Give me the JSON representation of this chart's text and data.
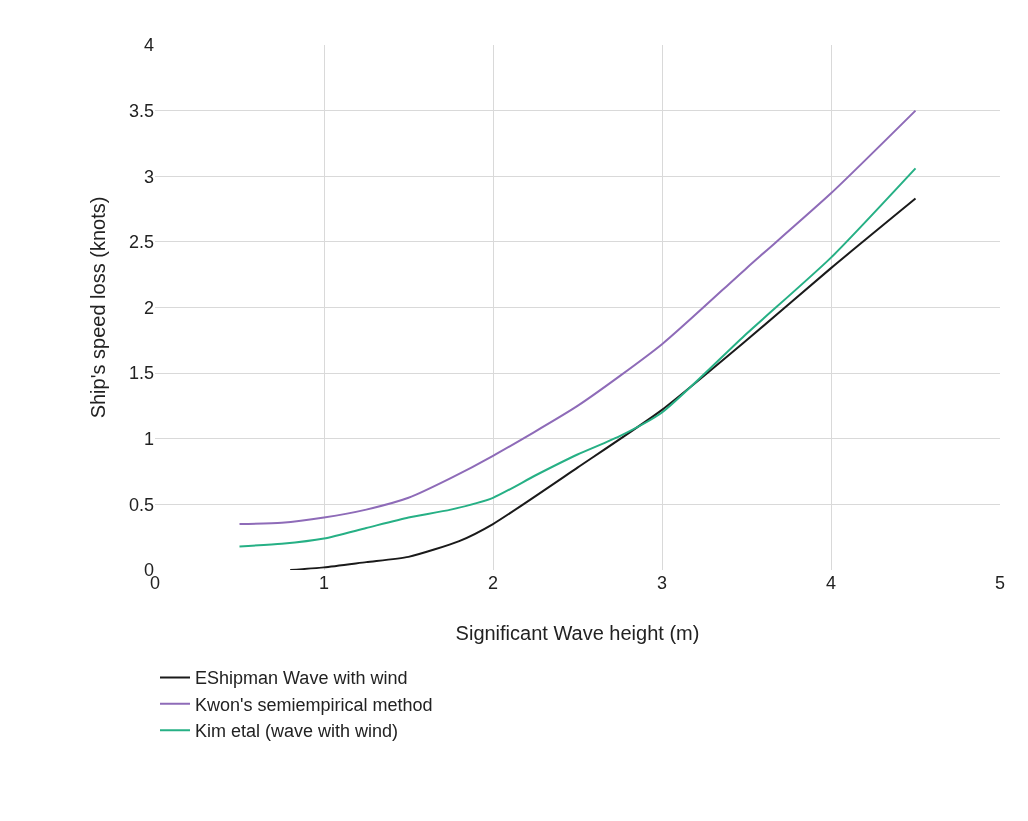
{
  "chart_data": {
    "type": "line",
    "xlabel": "Significant Wave height (m)",
    "ylabel": "Ship's speed loss (knots)",
    "xlim": [
      0,
      5
    ],
    "xticks": [
      0,
      1,
      2,
      3,
      4,
      5
    ],
    "ylim": [
      0,
      4
    ],
    "yticks": [
      0,
      0.5,
      1,
      1.5,
      2,
      2.5,
      3,
      3.5,
      4
    ],
    "grid": true,
    "legend": "bottom",
    "line_style": "solid",
    "marker": "none",
    "series": [
      {
        "name": "EShipman Wave with wind",
        "color": "#1a1a1a",
        "x": [
          0.8,
          1,
          1.25,
          1.5,
          1.8,
          2,
          2.5,
          3,
          3.5,
          4,
          4.5
        ],
        "values": [
          0,
          0.02,
          0.06,
          0.1,
          0.22,
          0.35,
          0.78,
          1.22,
          1.75,
          2.3,
          2.83
        ]
      },
      {
        "name": "Kwon's semiempirical method",
        "color": "#8e6bb8",
        "x": [
          0.5,
          0.75,
          1,
          1.25,
          1.5,
          1.75,
          2,
          2.5,
          3,
          3.5,
          4,
          4.5
        ],
        "values": [
          0.35,
          0.36,
          0.4,
          0.46,
          0.55,
          0.7,
          0.87,
          1.25,
          1.72,
          2.3,
          2.87,
          3.5
        ]
      },
      {
        "name": "Kim etal (wave with wind)",
        "color": "#26b085",
        "x": [
          0.5,
          0.75,
          1,
          1.25,
          1.5,
          1.75,
          2,
          2.25,
          2.5,
          2.75,
          3,
          3.5,
          4,
          4.5
        ],
        "values": [
          0.18,
          0.2,
          0.24,
          0.32,
          0.4,
          0.46,
          0.55,
          0.72,
          0.88,
          1.02,
          1.2,
          1.8,
          2.38,
          3.06
        ]
      }
    ]
  }
}
